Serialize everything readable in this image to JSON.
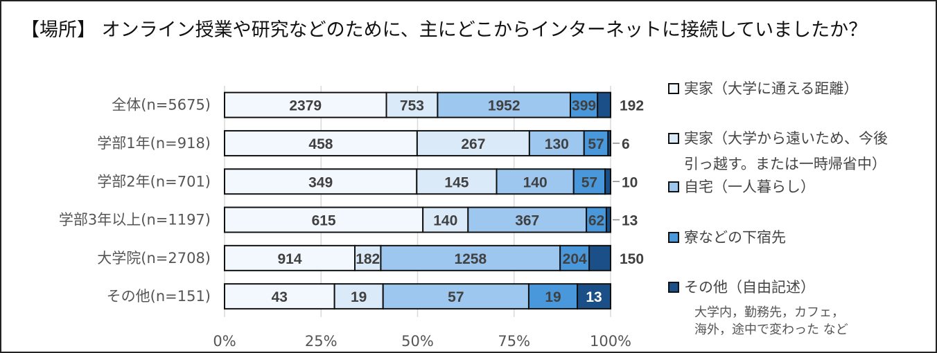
{
  "chart_data": {
    "type": "bar",
    "orientation": "horizontal",
    "stacked": "100%",
    "title": "【場所】 オンライン授業や研究などのために、主にどこからインターネットに接続していましたか？",
    "categories": [
      "全体(n=5675)",
      "学部1年(n=918)",
      "学部2年(n=701)",
      "学部3年以上(n=1197)",
      "大学院(n=2708)",
      "その他(n=151)"
    ],
    "series": [
      {
        "name": "実家（大学に通える距離）",
        "color": "#f2f8fd",
        "values": [
          2379,
          458,
          349,
          615,
          914,
          43
        ]
      },
      {
        "name": "実家（大学から遠いため、今後引っ越す。または一時帰省中）",
        "name_lines": [
          "実家（大学から遠いため、今後",
          "引っ越す。または一時帰省中）"
        ],
        "color": "#dbeaf8",
        "values": [
          753,
          267,
          145,
          140,
          182,
          19
        ]
      },
      {
        "name": "自宅（一人暮らし）",
        "color": "#9dc7ee",
        "values": [
          1952,
          130,
          140,
          367,
          1258,
          57
        ]
      },
      {
        "name": "寮などの下宿先",
        "color": "#4a98dc",
        "values": [
          399,
          57,
          57,
          62,
          204,
          19
        ]
      },
      {
        "name": "その他（自由記述）",
        "color": "#1b4f87",
        "values": [
          192,
          6,
          10,
          13,
          150,
          13
        ]
      }
    ],
    "legend_note": [
      "大学内，勤務先，カフェ，",
      "海外，途中で変わった など"
    ],
    "xticks": [
      "0%",
      "25%",
      "50%",
      "75%",
      "100%"
    ],
    "xlim": [
      0,
      100
    ],
    "grid": "vertical",
    "legend_position": "right"
  }
}
